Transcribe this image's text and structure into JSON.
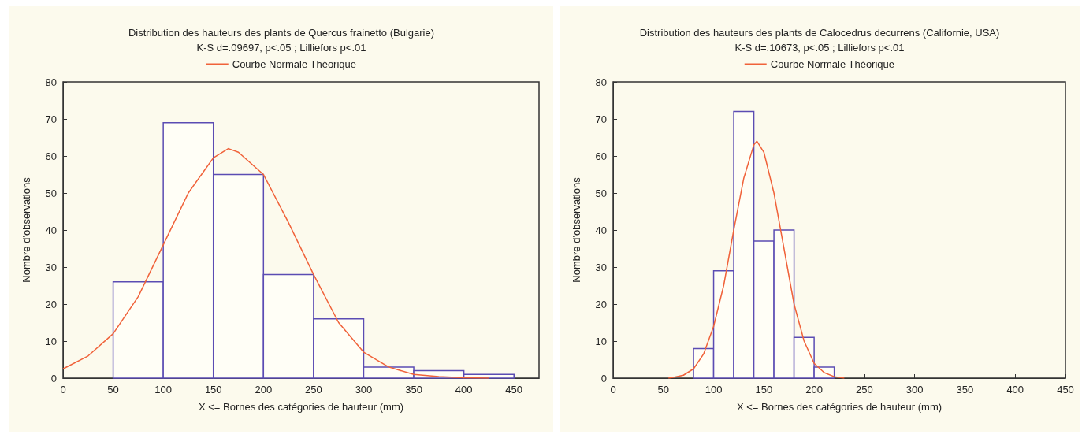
{
  "chart_data": [
    {
      "type": "histogram",
      "title": "Distribution des hauteurs des plants de Quercus frainetto (Bulgarie)",
      "subtitle": "K-S d=.09697, p<.05 ; Lilliefors p<.01",
      "xlabel": "X <= Bornes des catégories de hauteur (mm)",
      "ylabel": "Nombre d'observations",
      "xlim": [
        0,
        475
      ],
      "xticks": [
        0,
        50,
        100,
        150,
        200,
        250,
        300,
        350,
        400,
        450
      ],
      "ylim": [
        0,
        80
      ],
      "yticks": [
        0,
        10,
        20,
        30,
        40,
        50,
        60,
        70,
        80
      ],
      "legend": "top",
      "grid": false,
      "series": [
        {
          "type": "histogram",
          "color": "#5b4cb3",
          "bins": [
            50,
            100,
            150,
            200,
            250,
            300,
            350,
            400,
            450
          ],
          "values": [
            26,
            69,
            55,
            28,
            16,
            3,
            2,
            1
          ]
        },
        {
          "type": "line",
          "name": "Courbe Normale Théorique",
          "color": "#f0623a",
          "x": [
            0,
            25,
            50,
            75,
            100,
            125,
            150,
            165,
            175,
            200,
            225,
            250,
            275,
            300,
            325,
            350,
            375,
            400,
            425
          ],
          "values": [
            2.5,
            6,
            12,
            22,
            36,
            50,
            59.5,
            62,
            61,
            55,
            42,
            28,
            15,
            7,
            3,
            1,
            0.4,
            0.1,
            0
          ]
        }
      ]
    },
    {
      "type": "histogram",
      "title": "Distribution des hauteurs des plants de Calocedrus decurrens (Californie, USA)",
      "subtitle": "K-S d=.10673, p<.05 ; Lilliefors p<.01",
      "xlabel": "X <= Bornes des catégories de hauteur (mm)",
      "ylabel": "Nombre d'observations",
      "xlim": [
        0,
        450
      ],
      "xticks": [
        0,
        50,
        100,
        150,
        200,
        250,
        300,
        350,
        400,
        450
      ],
      "ylim": [
        0,
        80
      ],
      "yticks": [
        0,
        10,
        20,
        30,
        40,
        50,
        60,
        70,
        80
      ],
      "legend": "top",
      "grid": false,
      "series": [
        {
          "type": "histogram",
          "color": "#5b4cb3",
          "bins": [
            80,
            100,
            120,
            140,
            160,
            180,
            200,
            220
          ],
          "values": [
            8,
            29,
            72,
            37,
            40,
            11,
            3
          ]
        },
        {
          "type": "line",
          "name": "Courbe Normale Théorique",
          "color": "#f0623a",
          "x": [
            55,
            60,
            70,
            80,
            90,
            100,
            110,
            120,
            130,
            140,
            143,
            150,
            160,
            170,
            180,
            190,
            200,
            210,
            220,
            230
          ],
          "values": [
            0,
            0.2,
            0.8,
            2.5,
            6.5,
            14,
            25,
            40,
            54,
            63,
            64,
            61,
            50,
            35,
            20,
            10,
            4,
            1.5,
            0.4,
            0
          ]
        }
      ]
    }
  ]
}
